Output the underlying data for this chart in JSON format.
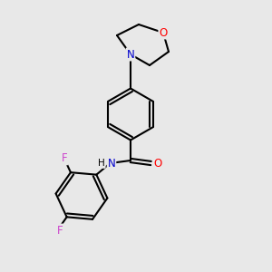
{
  "bg_color": "#e8e8e8",
  "bond_color": "#000000",
  "bond_width": 1.5,
  "atom_colors": {
    "N": "#0000cc",
    "O": "#ff0000",
    "F": "#cc44cc",
    "H": "#000000",
    "C": "#000000"
  },
  "font_size_atom": 8.5
}
